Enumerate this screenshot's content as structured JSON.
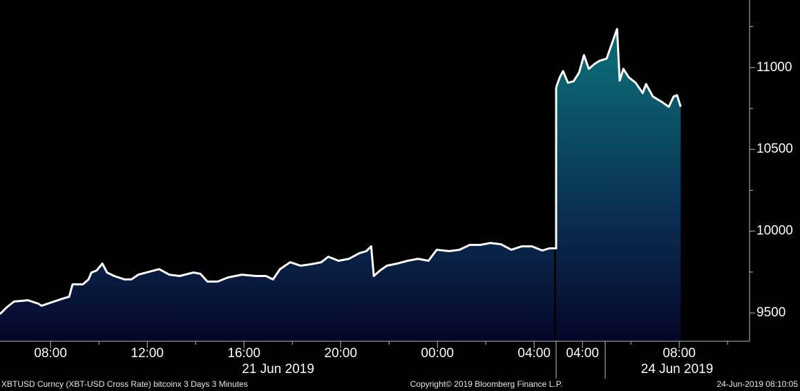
{
  "chart_data": [
    {
      "type": "area",
      "color": "#ffffff",
      "date_label": "21 Jun 2019",
      "xlim": [
        5.91,
        28.91
      ],
      "ylim": [
        9327,
        11413
      ],
      "xticks": [
        {
          "value": 8,
          "label": "08:00"
        },
        {
          "value": 12,
          "label": "12:00"
        },
        {
          "value": 16,
          "label": "16:00"
        },
        {
          "value": 20,
          "label": "20:00"
        },
        {
          "value": 24,
          "label": "00:00"
        },
        {
          "value": 28,
          "label": "04:00"
        }
      ],
      "xminorticks": [
        10,
        14,
        18,
        22,
        26
      ],
      "x": [
        5.91,
        6.2,
        6.49,
        7.06,
        7.49,
        7.63,
        8.06,
        8.49,
        8.77,
        8.91,
        9.34,
        9.57,
        9.69,
        9.91,
        10.14,
        10.34,
        10.63,
        11.06,
        11.34,
        11.63,
        12.06,
        12.49,
        12.91,
        13.34,
        13.91,
        14.2,
        14.49,
        14.91,
        15.34,
        15.91,
        16.49,
        16.91,
        17.2,
        17.49,
        17.91,
        18.34,
        18.77,
        19.2,
        19.49,
        19.91,
        20.34,
        20.77,
        21.06,
        21.26,
        21.37,
        21.63,
        21.91,
        22.34,
        22.77,
        23.2,
        23.63,
        23.97,
        24.49,
        24.91,
        25.34,
        25.77,
        26.2,
        26.63,
        27.06,
        27.49,
        27.91,
        28.34,
        28.63,
        28.83
      ],
      "values": [
        9494,
        9536,
        9570,
        9578,
        9557,
        9544,
        9566,
        9587,
        9599,
        9675,
        9675,
        9705,
        9747,
        9760,
        9802,
        9747,
        9726,
        9705,
        9705,
        9734,
        9751,
        9768,
        9734,
        9726,
        9747,
        9739,
        9692,
        9692,
        9717,
        9734,
        9726,
        9726,
        9705,
        9768,
        9810,
        9789,
        9798,
        9810,
        9844,
        9819,
        9831,
        9865,
        9878,
        9907,
        9726,
        9760,
        9789,
        9802,
        9819,
        9831,
        9819,
        9886,
        9878,
        9886,
        9916,
        9916,
        9928,
        9920,
        9886,
        9907,
        9907,
        9882,
        9895,
        9895
      ]
    },
    {
      "type": "area",
      "color": "#ffffff",
      "date_label": "24 Jun 2019",
      "xlim": [
        2.91,
        10.91
      ],
      "ylim": [
        9327,
        11413
      ],
      "xticks": [
        {
          "value": 4,
          "label": "04:00"
        },
        {
          "value": 8,
          "label": "08:00"
        }
      ],
      "xminorticks": [
        6,
        10
      ],
      "yticks": [
        9500,
        10000,
        10500,
        11000
      ],
      "yminorticks": [
        9750,
        10250,
        10750,
        11250
      ],
      "x": [
        2.91,
        3.06,
        3.2,
        3.4,
        3.63,
        3.86,
        4.06,
        4.26,
        4.49,
        4.71,
        5.0,
        5.2,
        5.43,
        5.54,
        5.69,
        5.91,
        6.2,
        6.49,
        6.63,
        6.91,
        7.29,
        7.57,
        7.77,
        7.91,
        8.06
      ],
      "values": [
        10878,
        10941,
        10979,
        10907,
        10916,
        10970,
        11076,
        10992,
        11021,
        11042,
        11055,
        11139,
        11236,
        10920,
        10992,
        10941,
        10907,
        10844,
        10899,
        10823,
        10789,
        10760,
        10823,
        10831,
        10760
      ]
    }
  ],
  "footer": {
    "left": "XBTUSD Curncy (XBT-USD Cross Rate) bitcoinx 3 Days 3 Minutes",
    "center": "Copyright© 2019 Bloomberg Finance L.P.",
    "right": "24-Jun-2019 08:10:05"
  }
}
